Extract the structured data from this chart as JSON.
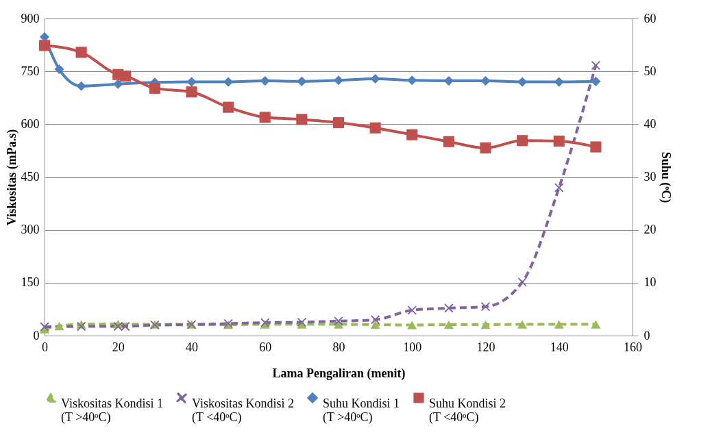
{
  "chart_data": {
    "type": "line",
    "xlabel": "Lama Pengaliran (menit)",
    "ylabel": "Viskositas (mPa.s)",
    "y2label": "Suhu  (ᵒC)",
    "xlim": [
      0,
      160
    ],
    "xticks": [
      0,
      20,
      40,
      60,
      80,
      100,
      120,
      140,
      160
    ],
    "ylim": [
      0,
      900
    ],
    "yticks": [
      0,
      150,
      300,
      450,
      600,
      750,
      900
    ],
    "y2lim": [
      0,
      60
    ],
    "y2ticks": [
      0,
      10,
      20,
      30,
      40,
      50,
      60
    ],
    "grid": "y",
    "legend": "bottom",
    "series": [
      {
        "name": "Viskositas Kondisi 1\n(T >40ᵒC)",
        "color": "#9bbb59",
        "marker": "triangle",
        "line_style": "dashed",
        "x": [
          0,
          4,
          10,
          20,
          30,
          40,
          50,
          60,
          70,
          80,
          90,
          100,
          110,
          120,
          130,
          140,
          150
        ],
        "values": [
          18,
          27,
          32,
          33,
          32,
          32,
          31,
          32,
          32,
          32,
          31,
          30,
          31,
          31,
          32,
          32,
          32
        ]
      },
      {
        "name": "Viskositas Kondisi 2\n(T <40ᵒC)",
        "color": "#8064a2",
        "marker": "cross",
        "line_style": "dashed",
        "x": [
          0,
          10,
          20,
          22,
          30,
          40,
          50,
          60,
          70,
          80,
          90,
          100,
          110,
          120,
          130,
          140,
          150
        ],
        "values": [
          25,
          26,
          26,
          26,
          30,
          31,
          34,
          37,
          38,
          41,
          45,
          72,
          78,
          82,
          152,
          420,
          767
        ]
      },
      {
        "name": "Suhu Kondisi 1\n(T >40ᵒC)",
        "color": "#4f81bd",
        "marker": "diamond",
        "line_style": "solid",
        "axis": "y2",
        "x": [
          0,
          4,
          10,
          20,
          30,
          40,
          50,
          60,
          70,
          80,
          90,
          100,
          110,
          120,
          130,
          140,
          150
        ],
        "values": [
          56.5,
          50.4,
          47.2,
          47.6,
          47.9,
          48.0,
          48.0,
          48.2,
          48.1,
          48.3,
          48.6,
          48.3,
          48.2,
          48.2,
          48.0,
          48.0,
          48.1
        ]
      },
      {
        "name": "Suhu Kondisi 2\n(T <40ᵒC)",
        "color": "#c0504d",
        "marker": "square",
        "line_style": "solid",
        "axis": "y2",
        "x": [
          0,
          10,
          20,
          22,
          30,
          40,
          50,
          60,
          70,
          80,
          90,
          100,
          110,
          120,
          130,
          140,
          150
        ],
        "values": [
          54.9,
          53.6,
          49.4,
          49.1,
          46.8,
          46.1,
          43.2,
          41.3,
          40.9,
          40.3,
          39.3,
          38.0,
          36.7,
          35.5,
          36.9,
          36.8,
          35.7
        ]
      }
    ]
  }
}
